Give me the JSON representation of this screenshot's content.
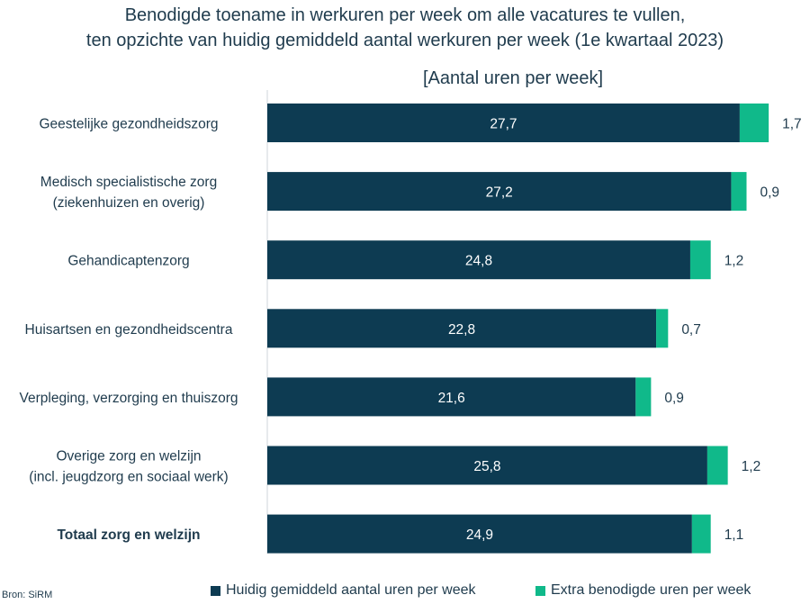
{
  "chart_data": {
    "type": "bar",
    "orientation": "horizontal",
    "stacked": true,
    "title": "Benodigde toename in werkuren per week om alle vacatures te vullen,",
    "title_line2": "ten opzichte van huidig gemiddeld aantal werkuren per week  (1e kwartaal 2023)",
    "subtitle": "[Aantal uren per week]",
    "categories": [
      [
        "Geestelijke gezondheidszorg"
      ],
      [
        "Medisch specialistische zorg",
        "(ziekenhuizen en overig)"
      ],
      [
        "Gehandicaptenzorg"
      ],
      [
        "Huisartsen en gezondheidscentra"
      ],
      [
        "Verpleging, verzorging en thuiszorg"
      ],
      [
        "Overige zorg en welzijn",
        "(incl. jeugdzorg en sociaal werk)"
      ],
      [
        "Totaal zorg en welzijn"
      ]
    ],
    "bold_category_index": 6,
    "series": [
      {
        "name": "Huidig gemiddeld aantal uren per week",
        "color": "#0d3b52",
        "values": [
          27.7,
          27.2,
          24.8,
          22.8,
          21.6,
          25.8,
          24.9
        ],
        "labels": [
          "27,7",
          "27,2",
          "24,8",
          "22,8",
          "21,6",
          "25,8",
          "24,9"
        ]
      },
      {
        "name": "Extra benodigde uren per week",
        "color": "#10b98a",
        "values": [
          1.7,
          0.9,
          1.2,
          0.7,
          0.9,
          1.2,
          1.1
        ],
        "labels": [
          "1,7",
          "0,9",
          "1,2",
          "0,7",
          "0,9",
          "1,2",
          "1,1"
        ]
      }
    ],
    "xlim": [
      0,
      29.4
    ],
    "grid": false,
    "legend_position": "bottom"
  },
  "source": "Bron: SiRM"
}
